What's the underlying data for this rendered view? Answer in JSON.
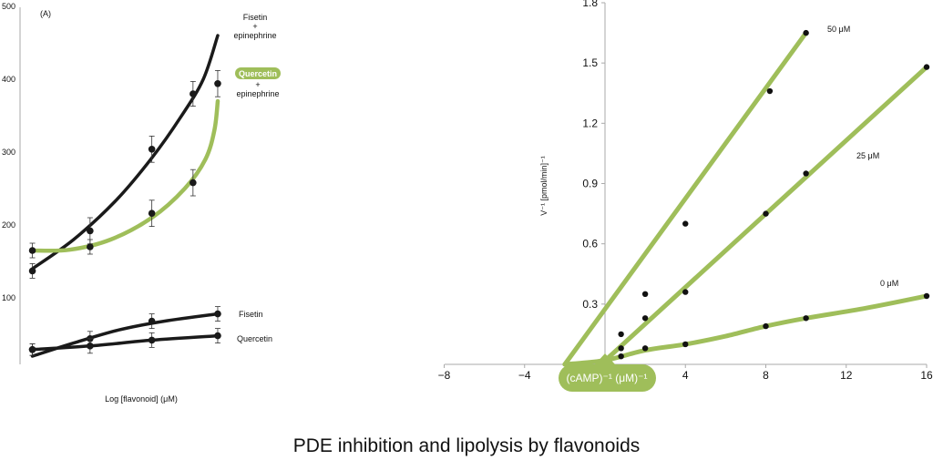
{
  "caption": "PDE inhibition and lipolysis by flavonoids",
  "colors": {
    "black": "#1a1a1a",
    "green": "#9fbe5a"
  },
  "chart_data": [
    {
      "type": "line",
      "panel_label": "(A)",
      "xlabel": "Log [flavonoid] (μM)",
      "ylabel": "",
      "ylim": [
        0,
        500
      ],
      "yticks": [
        100,
        200,
        300,
        400,
        500
      ],
      "xlim": [
        0,
        6
      ],
      "series": [
        {
          "name": "Fisetin + epinephrine",
          "label_lines": [
            "Fisetin",
            "+",
            "epinephrine"
          ],
          "color": "black",
          "highlight": false,
          "points": [
            [
              0.3,
              137,
              10
            ],
            [
              1.7,
              192,
              18
            ],
            [
              3.2,
              304,
              18
            ],
            [
              4.2,
              380,
              17
            ],
            [
              4.8,
              394,
              18
            ]
          ],
          "curve": [
            [
              0.3,
              140
            ],
            [
              1.3,
              180
            ],
            [
              2.3,
              232
            ],
            [
              3.2,
              292
            ],
            [
              3.9,
              348
            ],
            [
              4.45,
              400
            ],
            [
              4.8,
              460
            ]
          ]
        },
        {
          "name": "Quercetin + epinephrine",
          "label_lines": [
            "Quercetin",
            "+",
            "epinephrine"
          ],
          "color": "green",
          "highlight": true,
          "points": [
            [
              0.3,
              165,
              10
            ],
            [
              1.7,
              170,
              10
            ],
            [
              3.2,
              216,
              18
            ],
            [
              4.2,
              258,
              18
            ]
          ],
          "curve": [
            [
              0.3,
              165
            ],
            [
              1.2,
              166
            ],
            [
              2.2,
              180
            ],
            [
              3.2,
              210
            ],
            [
              4.0,
              250
            ],
            [
              4.5,
              290
            ],
            [
              4.72,
              330
            ],
            [
              4.8,
              370
            ]
          ]
        },
        {
          "name": "Fisetin",
          "label_lines": [
            "Fisetin"
          ],
          "color": "black",
          "highlight": false,
          "points": [
            [
              0.3,
              29,
              8
            ],
            [
              1.7,
              44,
              10
            ],
            [
              3.2,
              68,
              10
            ],
            [
              4.8,
              78,
              10
            ]
          ],
          "curve": [
            [
              0.3,
              20
            ],
            [
              1.3,
              38
            ],
            [
              2.4,
              56
            ],
            [
              3.5,
              68
            ],
            [
              4.8,
              78
            ]
          ]
        },
        {
          "name": "Quercetin",
          "label_lines": [
            "Quercetin"
          ],
          "color": "black",
          "highlight": false,
          "points": [
            [
              0.3,
              29,
              8
            ],
            [
              1.7,
              34,
              10
            ],
            [
              3.2,
              42,
              10
            ],
            [
              4.8,
              48,
              10
            ]
          ],
          "curve": [
            [
              0.3,
              29
            ],
            [
              1.7,
              34
            ],
            [
              3.2,
              42
            ],
            [
              4.8,
              48
            ]
          ]
        }
      ]
    },
    {
      "type": "line",
      "xlabel": "(cAMP)⁻¹ (μM)⁻¹",
      "ylabel": "V⁻¹ [pmol/min]⁻¹",
      "xlim": [
        -8,
        16
      ],
      "ylim": [
        0,
        1.8
      ],
      "xticks": [
        "−8",
        "−4",
        "0",
        "4",
        "8",
        "12",
        "16"
      ],
      "xtick_values": [
        -8,
        -4,
        0,
        4,
        8,
        12,
        16
      ],
      "yticks": [
        "0.3",
        "0.6",
        "0.9",
        "1.2",
        "1.5",
        "1.8"
      ],
      "ytick_values": [
        0.3,
        0.6,
        0.9,
        1.2,
        1.5,
        1.8
      ],
      "series": [
        {
          "name": "50 μM",
          "color": "green",
          "points": [
            [
              0.8,
              0.15
            ],
            [
              2.0,
              0.35
            ],
            [
              4.0,
              0.7
            ],
            [
              8.2,
              1.36
            ],
            [
              10.0,
              1.65
            ]
          ],
          "line": [
            [
              -2.0,
              0.0
            ],
            [
              10.0,
              1.65
            ]
          ]
        },
        {
          "name": "25 μM",
          "color": "green",
          "points": [
            [
              0.8,
              0.08
            ],
            [
              2.0,
              0.23
            ],
            [
              4.0,
              0.36
            ],
            [
              8.0,
              0.75
            ],
            [
              10.0,
              0.95
            ],
            [
              16.0,
              1.48
            ]
          ],
          "line": [
            [
              -0.2,
              0.0
            ],
            [
              16.0,
              1.48
            ]
          ]
        },
        {
          "name": "0 μM",
          "color": "green",
          "points": [
            [
              0.8,
              0.04
            ],
            [
              2.0,
              0.08
            ],
            [
              4.0,
              0.1
            ],
            [
              8.0,
              0.19
            ],
            [
              10.0,
              0.23
            ],
            [
              16.0,
              0.34
            ]
          ],
          "line": [
            [
              -2.0,
              0.0
            ],
            [
              0.0,
              0.02
            ],
            [
              2.0,
              0.07
            ],
            [
              4.0,
              0.1
            ],
            [
              6.0,
              0.14
            ],
            [
              8.0,
              0.19
            ],
            [
              10.0,
              0.23
            ],
            [
              13.0,
              0.28
            ],
            [
              16.0,
              0.34
            ]
          ]
        }
      ]
    }
  ]
}
